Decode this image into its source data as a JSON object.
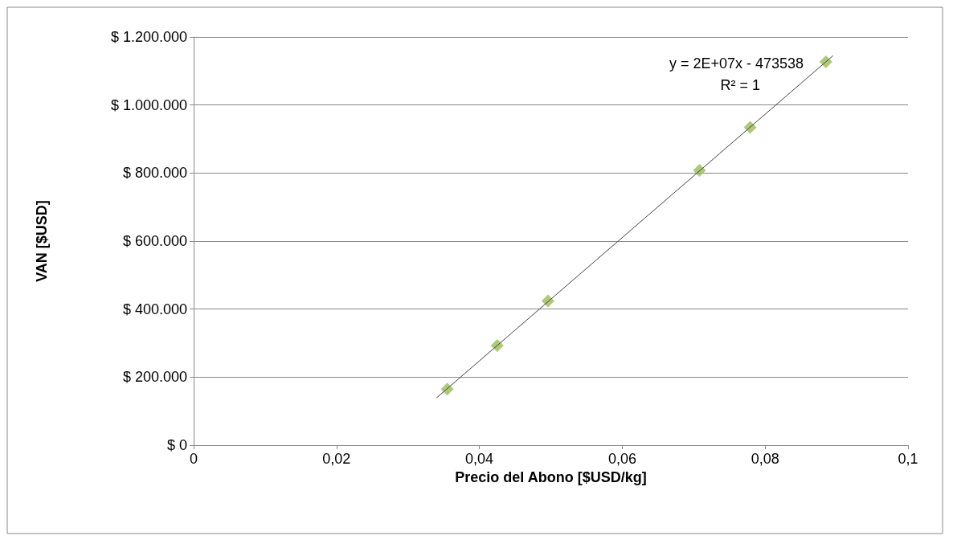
{
  "chart_data": {
    "type": "scatter",
    "xlabel": "Precio del Abono [$USD/kg]",
    "ylabel": "VAN [$USD]",
    "xlim": [
      0,
      0.1
    ],
    "xticks": [
      0,
      {
        "value": 0.02,
        "label": "0,02"
      },
      {
        "value": 0.04,
        "label": "0,04"
      },
      {
        "value": 0.06,
        "label": "0,06"
      },
      {
        "value": 0.08,
        "label": "0,08"
      },
      {
        "value": 0.1,
        "label": "0,1"
      }
    ],
    "ylim": [
      0,
      1200000
    ],
    "yticks": [
      {
        "value": 0,
        "label": "$ 0"
      },
      {
        "value": 200000,
        "label": "$ 200.000"
      },
      {
        "value": 400000,
        "label": "$ 400.000"
      },
      {
        "value": 600000,
        "label": "$ 600.000"
      },
      {
        "value": 800000,
        "label": "$ 800.000"
      },
      {
        "value": 1000000,
        "label": "$ 1.000.000"
      },
      {
        "value": 1200000,
        "label": "$ 1.200.000"
      }
    ],
    "grid": "y",
    "marker": "diamond",
    "series": [
      {
        "color": "#9bbb59",
        "x": [
          0.0355,
          0.0425,
          0.0496,
          0.0708,
          0.0779,
          0.0885
        ],
        "values": [
          165000,
          293000,
          424000,
          808000,
          934000,
          1127000
        ]
      },
      {
        "type": "line",
        "color": "#404040",
        "line_style": "solid",
        "marker": "none",
        "x": [
          0.034,
          0.0895
        ],
        "values": [
          139000,
          1145000
        ]
      }
    ],
    "annotations": [
      "y = 2E+07x - 473538",
      "R² = 1"
    ]
  }
}
